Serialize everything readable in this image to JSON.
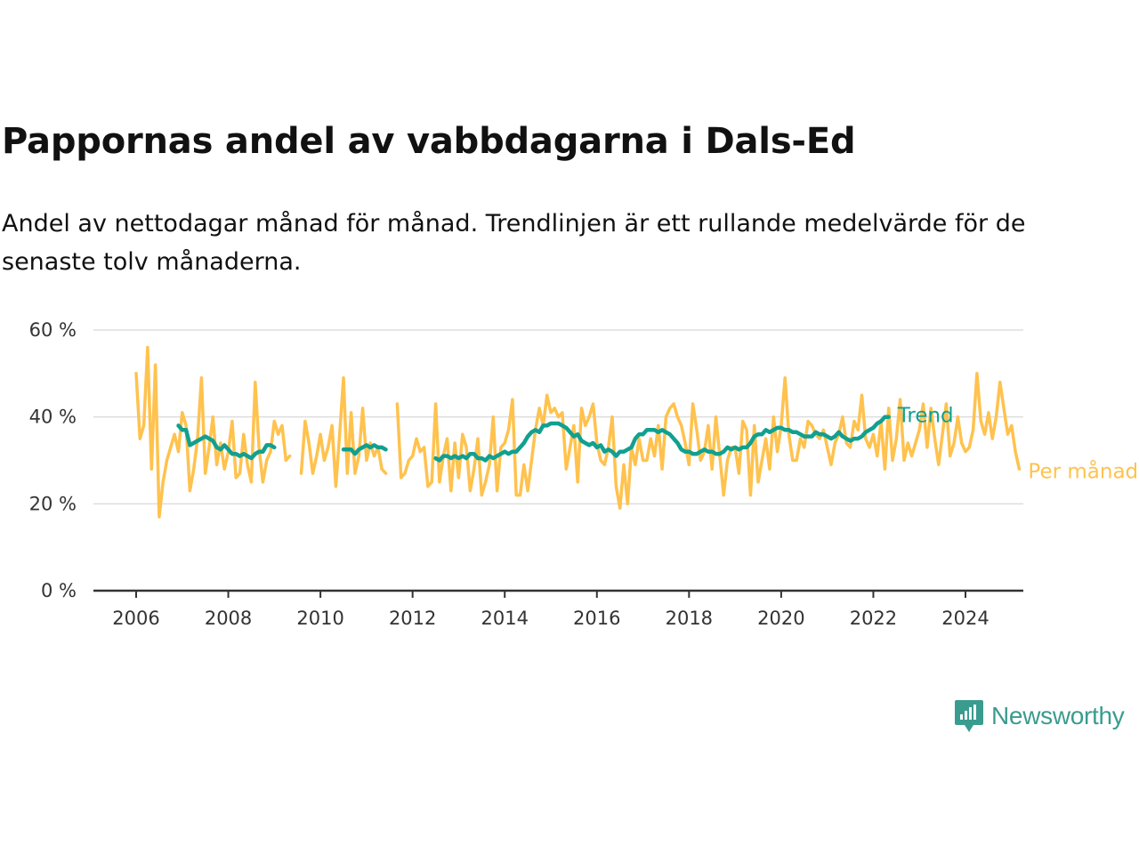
{
  "title": "Pappornas andel av vabbdagarna i Dals-Ed",
  "subtitle": "Andel av nettodagar månad för månad. Trendlinjen är ett rullande medelvärde för de senaste tolv månaderna.",
  "brand": {
    "name": "Newsworthy",
    "icon": "newsworthy-logo-icon"
  },
  "colors": {
    "monthly": "#ffc24e",
    "trend": "#11a090",
    "grid": "#dddddd",
    "axis": "#333333"
  },
  "chart_data": {
    "type": "line",
    "ylim": [
      0,
      60
    ],
    "y_ticks": [
      0,
      20,
      40,
      60
    ],
    "y_tick_labels": [
      "0 %",
      "20 %",
      "40 %",
      "60 %"
    ],
    "x_ticks": [
      2006,
      2008,
      2010,
      2012,
      2014,
      2016,
      2018,
      2020,
      2022,
      2024
    ],
    "x_tick_labels": [
      "2006",
      "2008",
      "2010",
      "2012",
      "2014",
      "2016",
      "2018",
      "2020",
      "2022",
      "2024"
    ],
    "grid": true,
    "series": [
      {
        "name": "Per månad",
        "color": "#ffc24e",
        "segments": [
          {
            "start": "2006-01",
            "values": [
              50,
              35,
              38,
              56,
              28,
              52,
              17,
              25,
              30,
              33,
              36,
              32,
              41,
              38,
              23,
              28,
              35,
              49,
              27,
              33,
              40,
              29,
              34,
              28,
              32,
              39,
              26,
              27,
              36,
              29,
              25,
              48,
              33,
              25,
              30,
              32,
              39,
              36,
              38,
              30,
              31
            ]
          },
          {
            "start": "2009-08",
            "values": [
              27,
              39,
              34,
              27,
              31,
              36,
              30,
              33,
              38,
              24,
              36,
              49,
              27,
              41,
              27,
              31,
              42,
              30,
              34,
              31,
              33,
              28,
              27
            ]
          },
          {
            "start": "2011-09",
            "values": [
              43,
              26,
              27,
              30,
              31,
              35,
              32,
              33,
              24,
              25,
              43,
              25,
              31,
              35,
              23,
              34,
              26,
              36,
              33,
              23,
              28,
              35,
              22,
              25,
              29,
              40,
              23,
              33,
              34,
              37,
              44,
              22,
              22,
              29,
              23,
              30,
              37,
              42,
              38,
              45,
              41,
              42,
              40,
              41,
              28,
              33,
              38,
              25,
              42,
              38,
              40,
              43,
              34,
              30,
              29,
              33,
              40,
              24,
              19,
              29,
              20,
              33,
              29,
              35,
              30,
              30,
              35,
              31,
              38,
              28,
              40,
              42,
              43,
              40,
              38,
              34,
              29,
              43,
              37,
              30,
              32,
              38,
              28,
              40,
              31,
              22,
              30,
              33,
              33,
              27,
              39,
              37,
              22,
              38,
              25,
              30,
              35,
              28,
              40,
              32,
              38,
              49,
              36,
              30,
              30,
              35,
              33,
              39,
              38,
              36,
              35,
              37,
              33,
              29,
              34,
              36,
              40,
              34,
              33,
              39,
              37,
              45,
              35,
              33,
              36,
              31,
              39,
              28,
              42,
              30,
              35,
              44,
              30,
              34,
              31,
              34,
              37,
              43,
              33,
              42,
              35,
              29,
              36,
              43,
              31,
              34,
              40,
              34,
              32,
              33,
              37,
              50,
              39,
              36,
              41,
              35,
              40,
              48,
              42,
              36,
              38,
              32,
              28
            ]
          }
        ]
      },
      {
        "name": "Trend",
        "color": "#11a090",
        "segments": [
          {
            "start": "2006-12",
            "values": [
              38,
              37,
              37,
              33.5,
              34,
              34.5,
              35,
              35.5,
              35,
              34.5,
              33,
              32.5,
              33.5,
              32.5,
              31.5,
              31.5,
              31,
              31.5,
              31,
              30.5,
              31.5,
              32,
              32,
              33.5,
              33.5,
              33
            ]
          },
          {
            "start": "2010-07",
            "values": [
              32.5,
              32.5,
              32.5,
              31.5,
              32.5,
              33,
              33.5,
              33,
              33.5,
              33,
              33,
              32.5
            ]
          },
          {
            "start": "2012-07",
            "values": [
              30.5,
              30,
              31,
              31,
              30.5,
              31,
              30.5,
              31,
              30.5,
              31.5,
              31.5,
              30.5,
              30.5,
              30,
              31,
              30.5,
              31,
              31.5,
              32,
              31.5,
              32,
              32,
              33,
              34,
              35.5,
              36.5,
              37,
              36.5,
              38,
              38,
              38.5,
              38.5,
              38.5,
              38,
              37.5,
              36.5,
              35.5,
              36,
              34.5,
              34,
              33.5,
              34,
              33,
              33.5,
              32,
              32.5,
              32,
              31,
              32,
              32,
              32.5,
              33,
              35,
              36,
              36,
              37,
              37,
              37,
              36.5,
              37,
              36.5,
              36,
              35,
              34,
              32.5,
              32,
              32,
              31.5,
              31.5,
              32,
              32.5,
              32,
              32,
              31.5,
              31.5,
              32,
              33,
              32.5,
              33,
              32.5,
              33,
              33,
              34,
              35.5,
              36,
              36,
              37,
              36.5,
              37,
              37.5,
              37.5,
              37,
              37,
              36.5,
              36.5,
              36,
              35.5,
              35.5,
              35.5,
              36.5,
              36,
              36,
              35.5,
              35,
              35.5,
              36.5,
              35.5,
              35,
              34.5,
              35,
              35,
              35.5,
              36.5,
              37,
              37.5,
              38.5,
              39,
              40,
              40
            ]
          }
        ]
      }
    ]
  }
}
